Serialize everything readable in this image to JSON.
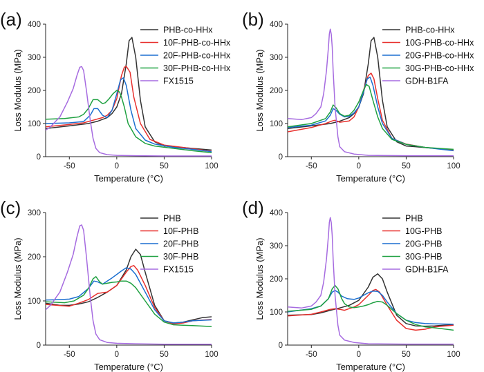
{
  "figure_caption": "",
  "chart_data": [
    {
      "type": "line",
      "panel": "(a)",
      "xlabel": "Temperature (°C)",
      "ylabel": "Loss Modulus (MPa)",
      "xlim": [
        -75,
        100
      ],
      "ylim": [
        0,
        400
      ],
      "xticks": [
        -50,
        0,
        50,
        100
      ],
      "yticks": [
        0,
        100,
        200,
        300,
        400
      ],
      "series": [
        {
          "name": "PHB-co-HHx",
          "color": "#333333",
          "x": [
            -75,
            -50,
            -30,
            -20,
            -10,
            -5,
            0,
            5,
            10,
            13,
            16,
            20,
            25,
            30,
            40,
            50,
            60,
            80,
            100
          ],
          "y": [
            85,
            93,
            100,
            107,
            118,
            130,
            150,
            190,
            280,
            350,
            360,
            300,
            170,
            90,
            45,
            32,
            30,
            25,
            20
          ]
        },
        {
          "name": "10F-PHB-co-HHx",
          "color": "#e8302d",
          "x": [
            -75,
            -50,
            -35,
            -25,
            -15,
            -10,
            -5,
            0,
            5,
            8,
            10,
            14,
            18,
            25,
            35,
            50,
            70,
            100
          ],
          "y": [
            90,
            97,
            102,
            110,
            118,
            125,
            140,
            175,
            245,
            270,
            273,
            255,
            180,
            100,
            52,
            35,
            28,
            16
          ]
        },
        {
          "name": "20F-PHB-co-HHx",
          "color": "#1b6fd0",
          "x": [
            -75,
            -50,
            -35,
            -28,
            -24,
            -20,
            -15,
            -10,
            -5,
            0,
            4,
            7,
            10,
            15,
            20,
            30,
            40,
            60,
            80,
            100
          ],
          "y": [
            100,
            102,
            106,
            125,
            145,
            145,
            125,
            118,
            140,
            190,
            232,
            238,
            215,
            140,
            85,
            50,
            38,
            28,
            22,
            15
          ]
        },
        {
          "name": "30F-PHB-co-HHx",
          "color": "#1fa141",
          "x": [
            -75,
            -55,
            -40,
            -35,
            -30,
            -25,
            -20,
            -15,
            -12,
            -8,
            -4,
            0,
            3,
            5,
            8,
            12,
            20,
            30,
            40,
            60,
            80,
            100
          ],
          "y": [
            113,
            115,
            120,
            128,
            145,
            172,
            172,
            160,
            163,
            175,
            190,
            200,
            195,
            180,
            150,
            100,
            60,
            40,
            32,
            25,
            18,
            12
          ]
        },
        {
          "name": "FX1515",
          "color": "#a66be0",
          "x": [
            -75,
            -70,
            -60,
            -52,
            -46,
            -42,
            -39,
            -37,
            -35,
            -32,
            -28,
            -25,
            -22,
            -18,
            -10,
            0,
            20,
            50,
            100
          ],
          "y": [
            80,
            90,
            120,
            165,
            205,
            245,
            270,
            272,
            260,
            200,
            110,
            55,
            25,
            12,
            6,
            4,
            3,
            2,
            2
          ]
        }
      ]
    },
    {
      "type": "line",
      "panel": "(b)",
      "xlabel": "Temperature (°C)",
      "ylabel": "Loss Modulus (MPa)",
      "xlim": [
        -75,
        100
      ],
      "ylim": [
        0,
        400
      ],
      "xticks": [
        -50,
        0,
        50,
        100
      ],
      "yticks": [
        0,
        100,
        200,
        300,
        400
      ],
      "series": [
        {
          "name": "PHB-co-HHx",
          "color": "#333333",
          "x": [
            -75,
            -50,
            -30,
            -20,
            -10,
            -5,
            0,
            5,
            10,
            13,
            16,
            20,
            25,
            30,
            40,
            50,
            60,
            80,
            100
          ],
          "y": [
            85,
            93,
            100,
            107,
            118,
            130,
            150,
            190,
            280,
            350,
            360,
            300,
            170,
            90,
            45,
            32,
            30,
            25,
            20
          ]
        },
        {
          "name": "10G-PHB-co-HHx",
          "color": "#e8302d",
          "x": [
            -75,
            -50,
            -35,
            -28,
            -25,
            -20,
            -10,
            -5,
            0,
            5,
            10,
            13,
            16,
            20,
            25,
            35,
            50,
            70,
            100
          ],
          "y": [
            75,
            88,
            100,
            108,
            110,
            104,
            108,
            120,
            150,
            200,
            245,
            252,
            235,
            175,
            110,
            55,
            38,
            28,
            20
          ]
        },
        {
          "name": "20G-PHB-co-HHx",
          "color": "#1b6fd0",
          "x": [
            -75,
            -50,
            -35,
            -30,
            -27,
            -24,
            -20,
            -15,
            -10,
            -5,
            0,
            5,
            9,
            12,
            15,
            20,
            25,
            35,
            50,
            70,
            100
          ],
          "y": [
            88,
            95,
            108,
            125,
            145,
            140,
            128,
            120,
            122,
            132,
            150,
            195,
            235,
            240,
            215,
            150,
            100,
            55,
            37,
            28,
            18
          ]
        },
        {
          "name": "30G-PHB-co-HHx",
          "color": "#1fa141",
          "x": [
            -75,
            -50,
            -35,
            -30,
            -27,
            -24,
            -20,
            -15,
            -10,
            -5,
            0,
            5,
            8,
            11,
            15,
            20,
            25,
            35,
            50,
            70,
            100
          ],
          "y": [
            90,
            100,
            115,
            135,
            156,
            148,
            130,
            122,
            125,
            140,
            165,
            200,
            218,
            212,
            170,
            120,
            85,
            52,
            37,
            28,
            22
          ]
        },
        {
          "name": "GDH-B1FA",
          "color": "#a66be0",
          "x": [
            -75,
            -60,
            -50,
            -45,
            -40,
            -37,
            -34,
            -32,
            -31,
            -30,
            -29,
            -28,
            -27,
            -25,
            -22,
            -20,
            -15,
            -5,
            10,
            50,
            100
          ],
          "y": [
            115,
            112,
            118,
            130,
            150,
            190,
            260,
            330,
            370,
            385,
            370,
            330,
            260,
            150,
            60,
            30,
            15,
            8,
            4,
            3,
            3
          ]
        }
      ]
    },
    {
      "type": "line",
      "panel": "(c)",
      "xlabel": "Temperature (°C)",
      "ylabel": "Loss Modulus (MPa)",
      "xlim": [
        -75,
        100
      ],
      "ylim": [
        0,
        300
      ],
      "xticks": [
        -50,
        0,
        50,
        100
      ],
      "yticks": [
        0,
        100,
        200,
        300
      ],
      "series": [
        {
          "name": "PHB",
          "color": "#333333",
          "x": [
            -75,
            -60,
            -50,
            -40,
            -30,
            -20,
            -10,
            0,
            10,
            15,
            20,
            25,
            30,
            40,
            50,
            60,
            70,
            80,
            90,
            100
          ],
          "y": [
            95,
            90,
            90,
            93,
            98,
            108,
            120,
            135,
            170,
            200,
            217,
            205,
            165,
            90,
            55,
            50,
            52,
            57,
            62,
            64
          ]
        },
        {
          "name": "10F-PHB",
          "color": "#e8302d",
          "x": [
            -75,
            -50,
            -40,
            -30,
            -20,
            -10,
            0,
            10,
            15,
            18,
            22,
            30,
            40,
            50,
            60,
            70,
            80,
            100
          ],
          "y": [
            92,
            88,
            95,
            103,
            117,
            120,
            135,
            165,
            178,
            180,
            170,
            135,
            85,
            55,
            48,
            50,
            55,
            58
          ]
        },
        {
          "name": "20F-PHB",
          "color": "#1b6fd0",
          "x": [
            -75,
            -60,
            -50,
            -40,
            -30,
            -24,
            -20,
            -15,
            -10,
            -5,
            0,
            5,
            10,
            15,
            20,
            30,
            40,
            50,
            60,
            70,
            80,
            100
          ],
          "y": [
            102,
            103,
            104,
            110,
            128,
            145,
            143,
            138,
            145,
            152,
            160,
            168,
            175,
            172,
            160,
            120,
            80,
            55,
            50,
            52,
            55,
            57
          ]
        },
        {
          "name": "30F-PHB",
          "color": "#1fa141",
          "x": [
            -75,
            -55,
            -45,
            -35,
            -30,
            -25,
            -22,
            -18,
            -15,
            -10,
            -5,
            0,
            5,
            10,
            15,
            20,
            30,
            40,
            50,
            60,
            70,
            80,
            100
          ],
          "y": [
            98,
            96,
            100,
            113,
            128,
            150,
            155,
            143,
            138,
            140,
            142,
            143,
            145,
            145,
            140,
            130,
            100,
            70,
            52,
            46,
            45,
            44,
            42
          ]
        },
        {
          "name": "FX1515",
          "color": "#a66be0",
          "x": [
            -75,
            -70,
            -60,
            -52,
            -46,
            -42,
            -39,
            -37,
            -35,
            -32,
            -28,
            -25,
            -22,
            -18,
            -10,
            0,
            20,
            50,
            100
          ],
          "y": [
            80,
            90,
            120,
            165,
            205,
            245,
            270,
            272,
            260,
            200,
            110,
            55,
            25,
            12,
            6,
            4,
            3,
            2,
            2
          ]
        }
      ]
    },
    {
      "type": "line",
      "panel": "(d)",
      "xlabel": "Temperature (°C)",
      "ylabel": "Loss Modulus (MPa)",
      "xlim": [
        -75,
        100
      ],
      "ylim": [
        0,
        400
      ],
      "xticks": [
        -50,
        0,
        50,
        100
      ],
      "yticks": [
        0,
        100,
        200,
        300,
        400
      ],
      "series": [
        {
          "name": "PHB",
          "color": "#333333",
          "x": [
            -75,
            -50,
            -40,
            -30,
            -20,
            -10,
            0,
            10,
            15,
            20,
            25,
            30,
            40,
            50,
            60,
            70,
            80,
            90,
            100
          ],
          "y": [
            90,
            92,
            97,
            105,
            112,
            120,
            135,
            175,
            205,
            215,
            200,
            160,
            90,
            65,
            58,
            57,
            58,
            60,
            62
          ]
        },
        {
          "name": "10G-PHB",
          "color": "#e8302d",
          "x": [
            -75,
            -50,
            -40,
            -30,
            -25,
            -20,
            -15,
            -10,
            -5,
            0,
            10,
            15,
            18,
            22,
            30,
            40,
            50,
            60,
            70,
            80,
            100
          ],
          "y": [
            88,
            93,
            100,
            108,
            110,
            108,
            105,
            110,
            115,
            122,
            150,
            165,
            168,
            160,
            120,
            75,
            50,
            45,
            48,
            55,
            60
          ]
        },
        {
          "name": "20G-PHB",
          "color": "#1b6fd0",
          "x": [
            -75,
            -50,
            -40,
            -32,
            -28,
            -25,
            -22,
            -18,
            -12,
            -5,
            0,
            5,
            10,
            15,
            20,
            25,
            30,
            40,
            50,
            60,
            70,
            80,
            100
          ],
          "y": [
            100,
            110,
            118,
            140,
            160,
            165,
            160,
            148,
            140,
            138,
            142,
            150,
            158,
            163,
            162,
            150,
            130,
            95,
            75,
            68,
            65,
            64,
            63
          ]
        },
        {
          "name": "30G-PHB",
          "color": "#1fa141",
          "x": [
            -75,
            -50,
            -40,
            -32,
            -28,
            -25,
            -22,
            -18,
            -15,
            -10,
            -5,
            0,
            5,
            10,
            15,
            20,
            25,
            30,
            40,
            50,
            60,
            70,
            80,
            100
          ],
          "y": [
            102,
            108,
            118,
            140,
            170,
            180,
            170,
            140,
            125,
            115,
            113,
            115,
            118,
            122,
            128,
            132,
            130,
            120,
            95,
            75,
            62,
            55,
            52,
            45
          ]
        },
        {
          "name": "GDH-B1FA",
          "color": "#a66be0",
          "x": [
            -75,
            -60,
            -50,
            -45,
            -40,
            -37,
            -34,
            -32,
            -31,
            -30,
            -29,
            -28,
            -27,
            -25,
            -22,
            -20,
            -15,
            -5,
            10,
            50,
            100
          ],
          "y": [
            115,
            112,
            118,
            130,
            150,
            190,
            260,
            330,
            370,
            385,
            370,
            330,
            260,
            150,
            60,
            30,
            15,
            8,
            4,
            3,
            3
          ]
        }
      ]
    }
  ]
}
